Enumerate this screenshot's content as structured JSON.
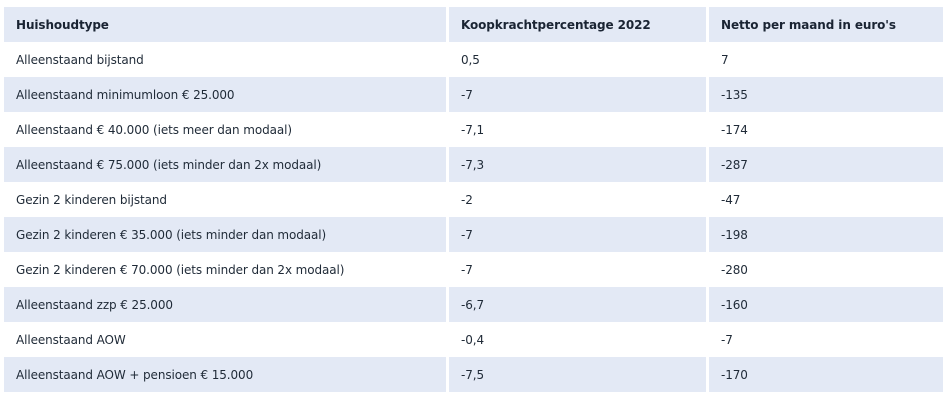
{
  "table": {
    "headers": [
      "Huishoudtype",
      "Koopkrachtpercentage 2022",
      "Netto per maand in euro's"
    ],
    "rows": [
      [
        "Alleenstaand bijstand",
        "0,5",
        "7"
      ],
      [
        "Alleenstaand minimumloon € 25.000",
        "-7",
        "-135"
      ],
      [
        "Alleenstaand € 40.000 (iets meer dan modaal)",
        "-7,1",
        "-174"
      ],
      [
        "Alleenstaand € 75.000 (iets minder dan 2x modaal)",
        "-7,3",
        "-287"
      ],
      [
        "Gezin 2 kinderen bijstand",
        "-2",
        "-47"
      ],
      [
        "Gezin 2 kinderen € 35.000 (iets minder dan modaal)",
        "-7",
        "-198"
      ],
      [
        "Gezin 2 kinderen € 70.000 (iets minder dan 2x modaal)",
        "-7",
        "-280"
      ],
      [
        "Alleenstaand zzp € 25.000",
        "-6,7",
        "-160"
      ],
      [
        "Alleenstaand AOW",
        "-0,4",
        "-7"
      ],
      [
        "Alleenstaand AOW + pensioen € 15.000",
        "-7,5",
        "-170"
      ]
    ]
  },
  "colors": {
    "header_bg": "#e3e9f5",
    "stripe_bg": "#e3e9f5",
    "text": "#1f2a37"
  }
}
